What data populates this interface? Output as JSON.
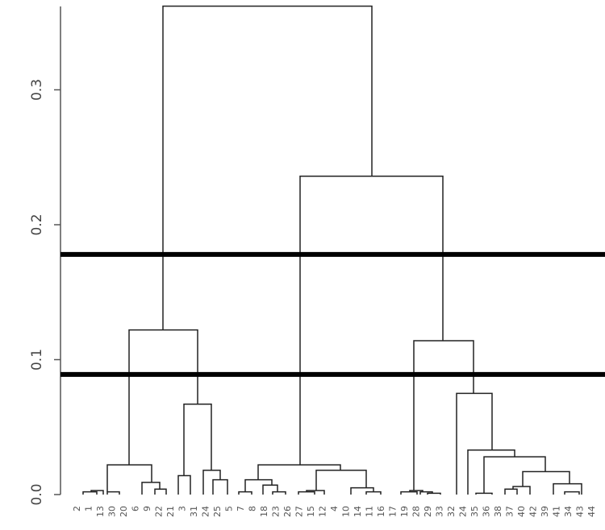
{
  "chart_data": {
    "type": "dendrogram",
    "title": "",
    "xlabel": "",
    "ylabel": "",
    "ylim": [
      0,
      0.36
    ],
    "yticks": [
      {
        "value": 0.0,
        "label": "0.0"
      },
      {
        "value": 0.1,
        "label": "0.1"
      },
      {
        "value": 0.2,
        "label": "0.2"
      },
      {
        "value": 0.3,
        "label": "0.3"
      }
    ],
    "cut_lines": [
      0.178,
      0.089
    ],
    "leaf_labels": [
      "2",
      "1",
      "13",
      "30",
      "20",
      "6",
      "9",
      "22",
      "21",
      "3",
      "31",
      "24",
      "25",
      "5",
      "7",
      "8",
      "18",
      "23",
      "26",
      "27",
      "15",
      "12",
      "4",
      "10",
      "14",
      "11",
      "16",
      "17",
      "19",
      "28",
      "29",
      "33",
      "32",
      "24",
      "35",
      "36",
      "38",
      "37",
      "40",
      "42",
      "39",
      "41",
      "34",
      "43",
      "44"
    ],
    "merges": [
      {
        "id": "a1",
        "h": 0.002,
        "children": [
          "x:103",
          "x:120"
        ]
      },
      {
        "id": "a2",
        "h": 0.003,
        "children": [
          "x:113",
          "x:128"
        ]
      },
      {
        "id": "a3",
        "h": 0.002,
        "children": [
          "x:133",
          "x:148"
        ]
      },
      {
        "id": "a4",
        "h": 0.022,
        "children": [
          "x:133",
          "x:188"
        ]
      },
      {
        "id": "a5",
        "h": 0.009,
        "children": [
          "x:176",
          "x:198"
        ]
      },
      {
        "id": "a6",
        "h": 0.004,
        "children": [
          "x:192",
          "x:206"
        ]
      },
      {
        "id": "a7",
        "h": 0.014,
        "children": [
          "x:221",
          "x:236"
        ]
      },
      {
        "id": "a8",
        "h": 0.067,
        "children": [
          "x:228",
          "x:262"
        ]
      },
      {
        "id": "a9",
        "h": 0.018,
        "children": [
          "x:252",
          "x:273"
        ]
      },
      {
        "id": "a10",
        "h": 0.011,
        "children": [
          "x:264",
          "x:282"
        ]
      },
      {
        "id": "a11",
        "h": 0.122,
        "children": [
          "x:160",
          "x:245"
        ]
      },
      {
        "id": "b1",
        "h": 0.002,
        "children": [
          "x:296",
          "x:312"
        ]
      },
      {
        "id": "b2",
        "h": 0.011,
        "children": [
          "x:304",
          "x:337"
        ]
      },
      {
        "id": "b3",
        "h": 0.007,
        "children": [
          "x:326",
          "x:344"
        ]
      },
      {
        "id": "b4",
        "h": 0.002,
        "children": [
          "x:338",
          "x:354"
        ]
      },
      {
        "id": "b5",
        "h": 0.022,
        "children": [
          "x:320",
          "x:422"
        ]
      },
      {
        "id": "b6",
        "h": 0.002,
        "children": [
          "x:370",
          "x:390"
        ]
      },
      {
        "id": "b7",
        "h": 0.018,
        "children": [
          "x:392",
          "x:454"
        ]
      },
      {
        "id": "b8",
        "h": 0.003,
        "children": [
          "x:380",
          "x:402"
        ]
      },
      {
        "id": "b9",
        "h": 0.005,
        "children": [
          "x:435",
          "x:463"
        ]
      },
      {
        "id": "b10",
        "h": 0.002,
        "children": [
          "x:454",
          "x:472"
        ]
      },
      {
        "id": "c1",
        "h": 0.002,
        "children": [
          "x:497",
          "x:517"
        ]
      },
      {
        "id": "c2",
        "h": 0.003,
        "children": [
          "x:508",
          "x:524"
        ]
      },
      {
        "id": "c3",
        "h": 0.002,
        "children": [
          "x:521",
          "x:536"
        ]
      },
      {
        "id": "c4",
        "h": 0.001,
        "children": [
          "x:530",
          "x:546"
        ]
      },
      {
        "id": "c5",
        "h": 0.114,
        "children": [
          "x:513",
          "x:587"
        ]
      },
      {
        "id": "c6",
        "h": 0.075,
        "children": [
          "x:566",
          "x:610"
        ]
      },
      {
        "id": "c7",
        "h": 0.033,
        "children": [
          "x:580",
          "x:638"
        ]
      },
      {
        "id": "c8",
        "h": 0.028,
        "children": [
          "x:600",
          "x:676"
        ]
      },
      {
        "id": "c9",
        "h": 0.001,
        "children": [
          "x:590",
          "x:610"
        ]
      },
      {
        "id": "c10",
        "h": 0.017,
        "children": [
          "x:648",
          "x:706"
        ]
      },
      {
        "id": "c11",
        "h": 0.004,
        "children": [
          "x:626",
          "x:641"
        ]
      },
      {
        "id": "c12",
        "h": 0.006,
        "children": [
          "x:636",
          "x:657"
        ]
      },
      {
        "id": "c13",
        "h": 0.008,
        "children": [
          "x:686",
          "x:721"
        ]
      },
      {
        "id": "c14",
        "h": 0.002,
        "children": [
          "x:700",
          "x:718"
        ]
      },
      {
        "id": "d1",
        "h": 0.236,
        "children": [
          "x:372",
          "x:549"
        ]
      },
      {
        "id": "d2",
        "h": 0.362,
        "children": [
          "x:202",
          "x:461"
        ]
      }
    ]
  }
}
